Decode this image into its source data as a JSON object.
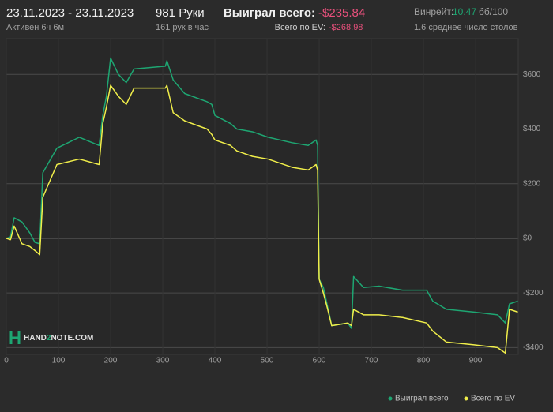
{
  "header": {
    "date_range": "23.11.2023 - 23.11.2023",
    "active": "Активен 6ч 6м",
    "hands": "981 Руки",
    "hands_per_hour": "161 рук в час",
    "won_label": "Выиграл всего:",
    "won_value": "-$235.84",
    "ev_label": "Всего по EV:",
    "ev_value": "-$268.98",
    "winrate_label": "Винрейт:",
    "winrate_value": "10.47",
    "winrate_unit": "бб/100",
    "tables": "1.6 среднее число столов"
  },
  "logo": {
    "part1": "HAND",
    "part2": "2",
    "part3": "NOTE.COM"
  },
  "chart_data": {
    "type": "line",
    "x": [
      0,
      8,
      15,
      30,
      45,
      55,
      64,
      70,
      97,
      140,
      178,
      185,
      192,
      200,
      215,
      230,
      245,
      305,
      308,
      320,
      342,
      385,
      394,
      400,
      430,
      442,
      472,
      502,
      548,
      579,
      594,
      597,
      600,
      608,
      615,
      624,
      655,
      662,
      666,
      685,
      715,
      760,
      806,
      818,
      844,
      897,
      942,
      957,
      965,
      981
    ],
    "series": [
      {
        "name": "Выиграл всего",
        "color": "#1ea672",
        "values": [
          0,
          5,
          75,
          60,
          20,
          -15,
          -20,
          240,
          330,
          370,
          340,
          450,
          520,
          660,
          600,
          570,
          620,
          630,
          650,
          580,
          530,
          500,
          490,
          450,
          420,
          400,
          390,
          370,
          350,
          340,
          360,
          340,
          -150,
          -180,
          -240,
          -320,
          -310,
          -330,
          -140,
          -180,
          -175,
          -190,
          -190,
          -230,
          -260,
          -270,
          -280,
          -310,
          -240,
          -230
        ]
      },
      {
        "name": "Всего по EV",
        "color": "#f0ee4a",
        "values": [
          0,
          -5,
          45,
          -20,
          -30,
          -45,
          -60,
          150,
          270,
          290,
          270,
          420,
          480,
          560,
          520,
          490,
          550,
          550,
          560,
          460,
          430,
          400,
          380,
          360,
          340,
          320,
          300,
          290,
          260,
          250,
          270,
          250,
          -150,
          -200,
          -250,
          -320,
          -310,
          -320,
          -260,
          -280,
          -280,
          -290,
          -310,
          -340,
          -380,
          -390,
          -400,
          -420,
          -260,
          -270
        ]
      }
    ],
    "xlim": [
      0,
      981
    ],
    "xticks": [
      0,
      100,
      200,
      300,
      400,
      500,
      600,
      700,
      800,
      900
    ],
    "ylim": [
      -425,
      730
    ],
    "yticks": [
      {
        "value": -400,
        "label": "-$400"
      },
      {
        "value": -200,
        "label": "-$200"
      },
      {
        "value": 0,
        "label": "$0"
      },
      {
        "value": 200,
        "label": "$200"
      },
      {
        "value": 400,
        "label": "$400"
      },
      {
        "value": 600,
        "label": "$600"
      }
    ],
    "grid": true,
    "legend": "bottom-right"
  }
}
